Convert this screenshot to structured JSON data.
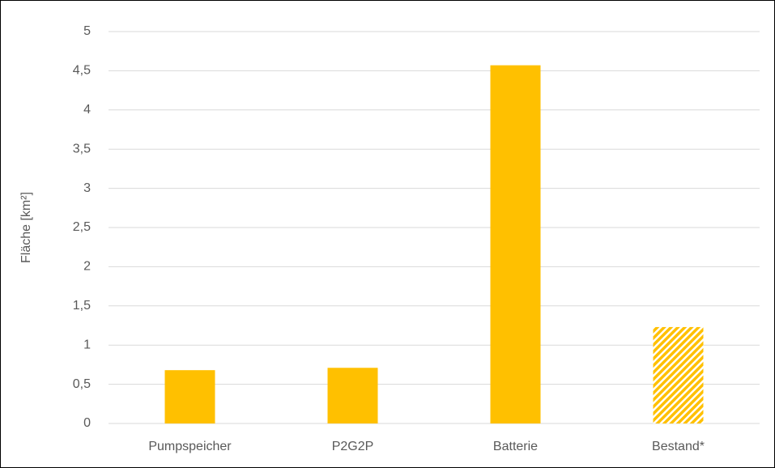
{
  "chart_data": {
    "type": "bar",
    "y_label": "Fläche [km²]",
    "categories": [
      "Pumpspeicher",
      "P2G2P",
      "Batterie",
      "Bestand*"
    ],
    "values": [
      0.68,
      0.71,
      4.57,
      1.23
    ],
    "hatched": [
      false,
      false,
      false,
      true
    ],
    "color": "#ffc000",
    "ylim": [
      0,
      5
    ],
    "yticks": [
      0,
      {
        "value": 0.5,
        "label": "0,5"
      },
      1,
      {
        "value": 1.5,
        "label": "1,5"
      },
      2,
      {
        "value": 2.5,
        "label": "2,5"
      },
      3,
      {
        "value": 3.5,
        "label": "3,5"
      },
      4,
      {
        "value": 4.5,
        "label": "4,5"
      },
      5
    ],
    "grid": true
  }
}
